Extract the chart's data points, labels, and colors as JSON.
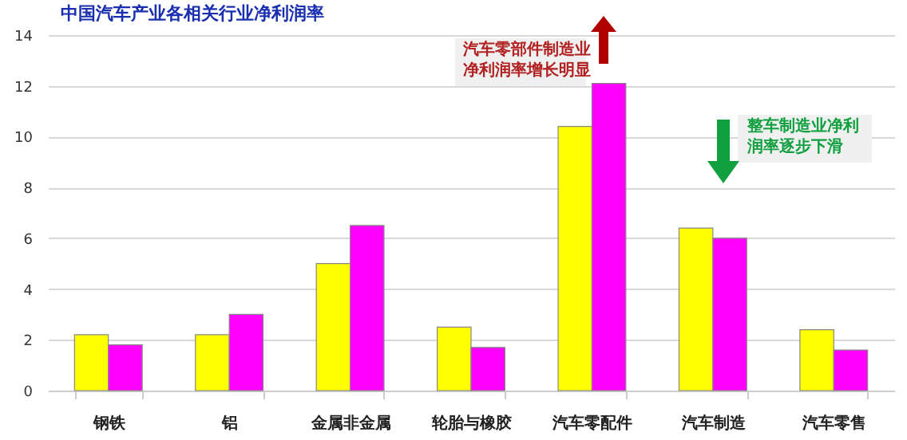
{
  "chart_data": {
    "type": "bar",
    "title": "中国汽车产业各相关行业净利润率",
    "categories": [
      "钢铁",
      "铝",
      "金属非金属",
      "轮胎与橡胶",
      "汽车零配件",
      "汽车制造",
      "汽车零售"
    ],
    "series": [
      {
        "color": "#ffff00",
        "values": [
          2.2,
          2.2,
          5.0,
          2.5,
          10.4,
          6.4,
          2.4
        ]
      },
      {
        "color": "#ff00ff",
        "values": [
          1.8,
          3.0,
          6.5,
          1.7,
          12.1,
          6.0,
          1.6
        ]
      }
    ],
    "ylim": [
      0,
      14
    ],
    "yticks": [
      0,
      2,
      4,
      6,
      8,
      10,
      12,
      14
    ],
    "grid": "y",
    "annotations": [
      "汽车零部件制造业",
      "净利润率增长明显",
      "整车制造业净利",
      "润率逐步下滑"
    ]
  }
}
